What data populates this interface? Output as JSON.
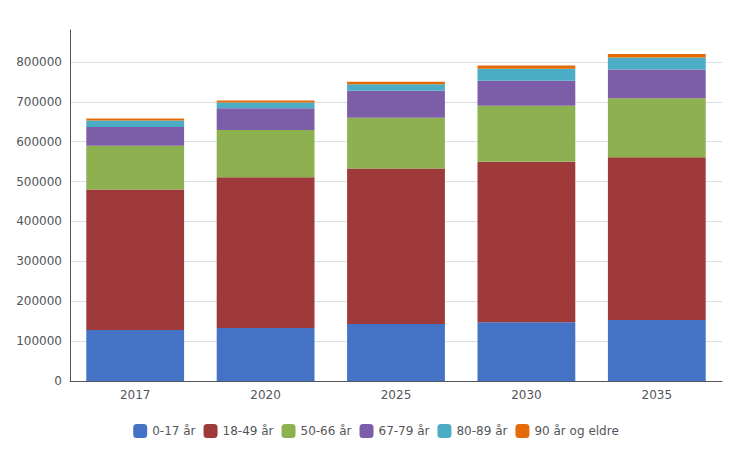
{
  "chart_data": {
    "type": "bar",
    "stacked": true,
    "categories": [
      "2017",
      "2020",
      "2025",
      "2030",
      "2035"
    ],
    "series": [
      {
        "name": "0-17 år",
        "color": "#4472C4",
        "values": [
          128000,
          133000,
          143000,
          147000,
          153000
        ]
      },
      {
        "name": "18-49 år",
        "color": "#9E3A3A",
        "values": [
          352000,
          378000,
          390000,
          403000,
          408000
        ]
      },
      {
        "name": "50-66 år",
        "color": "#8DB050",
        "values": [
          110000,
          118000,
          127000,
          140000,
          148000
        ]
      },
      {
        "name": "67-79 år",
        "color": "#7B5EA7",
        "values": [
          47000,
          55000,
          68000,
          63000,
          72000
        ]
      },
      {
        "name": "80-89 år",
        "color": "#4BACC6",
        "values": [
          16000,
          14000,
          16000,
          30000,
          30000
        ]
      },
      {
        "name": "90 år og eldre",
        "color": "#E36C09",
        "values": [
          5000,
          5000,
          6000,
          8000,
          9000
        ]
      }
    ],
    "ylim": [
      0,
      880000
    ],
    "yticks": [
      0,
      100000,
      200000,
      300000,
      400000,
      500000,
      600000,
      700000,
      800000
    ],
    "grid": true,
    "legend": "bottom"
  }
}
